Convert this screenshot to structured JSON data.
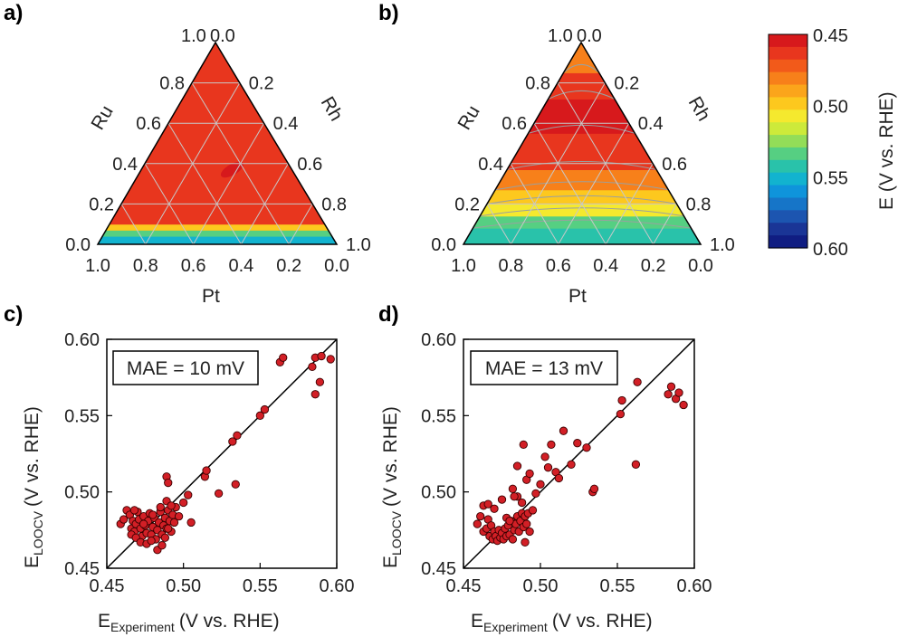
{
  "panels": {
    "a": "a)",
    "b": "b)",
    "c": "c)",
    "d": "d)"
  },
  "colorbar": {
    "label": "E (V vs. RHE)",
    "ticks": [
      "0.45",
      "0.50",
      "0.55",
      "0.60"
    ],
    "tick_values": [
      0.45,
      0.5,
      0.55,
      0.6
    ],
    "colors": [
      "#d7191c",
      "#e8361e",
      "#f25a1a",
      "#f7801a",
      "#fba51b",
      "#fdc81e",
      "#f5e92e",
      "#cdea3a",
      "#93dd58",
      "#56cf82",
      "#29c2aa",
      "#12b3cf",
      "#0f94db",
      "#1675c8",
      "#1c55b0",
      "#1a3596",
      "#101d82"
    ]
  },
  "ternary": {
    "axes": {
      "bottom": "Pt",
      "left": "Ru",
      "right": "Rh"
    },
    "tick_labels": [
      "0.0",
      "0.2",
      "0.4",
      "0.6",
      "0.8",
      "1.0"
    ],
    "tick_values": [
      0,
      0.2,
      0.4,
      0.6,
      0.8,
      1
    ],
    "top_label": "1.0",
    "top_label_right": "0.0"
  },
  "chart_data": [
    {
      "type": "heatmap",
      "panel": "a",
      "title": "",
      "components": [
        "Pt",
        "Ru",
        "Rh"
      ],
      "value_unit": "E (V vs. RHE)",
      "regions_by_ru_fraction": [
        {
          "ru_range": [
            0.0,
            0.04
          ],
          "E": 0.55
        },
        {
          "ru_range": [
            0.04,
            0.07
          ],
          "E": 0.535
        },
        {
          "ru_range": [
            0.07,
            0.1
          ],
          "E": 0.5
        },
        {
          "ru_range": [
            0.1,
            1.0
          ],
          "E": 0.465
        }
      ],
      "minimum_near": {
        "Pt": 0.25,
        "Ru": 0.37,
        "Rh": 0.38,
        "E": 0.455
      }
    },
    {
      "type": "heatmap",
      "panel": "b",
      "title": "",
      "components": [
        "Pt",
        "Ru",
        "Rh"
      ],
      "value_unit": "E (V vs. RHE)",
      "regions_by_ru_fraction": [
        {
          "ru_range": [
            0.0,
            0.08
          ],
          "E": 0.545
        },
        {
          "ru_range": [
            0.08,
            0.14
          ],
          "E": 0.53
        },
        {
          "ru_range": [
            0.14,
            0.2
          ],
          "E": 0.51
        },
        {
          "ru_range": [
            0.2,
            0.27
          ],
          "E": 0.495
        },
        {
          "ru_range": [
            0.27,
            0.37
          ],
          "E": 0.48
        },
        {
          "ru_range": [
            0.37,
            0.55
          ],
          "E": 0.465
        },
        {
          "ru_range": [
            0.55,
            0.72
          ],
          "E": 0.455
        },
        {
          "ru_range": [
            0.72,
            0.85
          ],
          "E": 0.465
        },
        {
          "ru_range": [
            0.85,
            1.0
          ],
          "E": 0.485
        }
      ]
    },
    {
      "type": "scatter",
      "panel": "c",
      "annotation": "MAE = 10 mV",
      "xlabel": "E",
      "xlabel_sub": "Experiment",
      "xlabel_unit": "(V vs. RHE)",
      "ylabel": "E",
      "ylabel_sub": "LOOCV",
      "ylabel_unit": "(V vs. RHE)",
      "xlim": [
        0.45,
        0.6
      ],
      "ylim": [
        0.45,
        0.6
      ],
      "xticks": [
        "0.45",
        "0.50",
        "0.55",
        "0.60"
      ],
      "yticks": [
        "0.45",
        "0.50",
        "0.55",
        "0.60"
      ],
      "reference_line": "y = x",
      "x": [
        0.459,
        0.461,
        0.463,
        0.465,
        0.466,
        0.467,
        0.468,
        0.469,
        0.47,
        0.471,
        0.472,
        0.473,
        0.474,
        0.475,
        0.476,
        0.477,
        0.478,
        0.479,
        0.48,
        0.481,
        0.482,
        0.483,
        0.484,
        0.485,
        0.486,
        0.487,
        0.488,
        0.489,
        0.49,
        0.491,
        0.492,
        0.493,
        0.494,
        0.495,
        0.466,
        0.469,
        0.472,
        0.476,
        0.479,
        0.483,
        0.486,
        0.488,
        0.49,
        0.468,
        0.474,
        0.48,
        0.485,
        0.489,
        0.492,
        0.497,
        0.5,
        0.503,
        0.505,
        0.514,
        0.515,
        0.523,
        0.532,
        0.535,
        0.534,
        0.55,
        0.553,
        0.563,
        0.565,
        0.584,
        0.586,
        0.59,
        0.596,
        0.586,
        0.589,
        0.489,
        0.49
      ],
      "y": [
        0.479,
        0.482,
        0.488,
        0.485,
        0.476,
        0.481,
        0.474,
        0.479,
        0.487,
        0.482,
        0.476,
        0.471,
        0.484,
        0.478,
        0.473,
        0.481,
        0.486,
        0.472,
        0.477,
        0.483,
        0.469,
        0.475,
        0.48,
        0.487,
        0.472,
        0.478,
        0.483,
        0.476,
        0.488,
        0.481,
        0.474,
        0.485,
        0.48,
        0.49,
        0.472,
        0.47,
        0.467,
        0.466,
        0.468,
        0.462,
        0.465,
        0.47,
        0.476,
        0.488,
        0.479,
        0.485,
        0.49,
        0.494,
        0.491,
        0.484,
        0.493,
        0.498,
        0.48,
        0.51,
        0.514,
        0.499,
        0.533,
        0.537,
        0.505,
        0.55,
        0.554,
        0.585,
        0.588,
        0.582,
        0.588,
        0.589,
        0.587,
        0.564,
        0.572,
        0.51,
        0.506
      ]
    },
    {
      "type": "scatter",
      "panel": "d",
      "annotation": "MAE = 13 mV",
      "xlabel": "E",
      "xlabel_sub": "Experiment",
      "xlabel_unit": "(V vs. RHE)",
      "ylabel": "E",
      "ylabel_sub": "LOOCV",
      "ylabel_unit": "(V vs. RHE)",
      "xlim": [
        0.45,
        0.6
      ],
      "ylim": [
        0.45,
        0.6
      ],
      "xticks": [
        "0.45",
        "0.50",
        "0.55",
        "0.60"
      ],
      "yticks": [
        "0.45",
        "0.50",
        "0.55",
        "0.60"
      ],
      "reference_line": "y = x",
      "x": [
        0.459,
        0.461,
        0.463,
        0.465,
        0.466,
        0.467,
        0.468,
        0.469,
        0.47,
        0.471,
        0.472,
        0.473,
        0.474,
        0.475,
        0.476,
        0.477,
        0.478,
        0.479,
        0.48,
        0.481,
        0.482,
        0.483,
        0.484,
        0.485,
        0.486,
        0.487,
        0.488,
        0.489,
        0.49,
        0.491,
        0.492,
        0.463,
        0.466,
        0.47,
        0.475,
        0.478,
        0.482,
        0.485,
        0.489,
        0.491,
        0.493,
        0.495,
        0.497,
        0.5,
        0.503,
        0.505,
        0.507,
        0.51,
        0.512,
        0.515,
        0.52,
        0.524,
        0.53,
        0.534,
        0.535,
        0.552,
        0.553,
        0.562,
        0.563,
        0.583,
        0.585,
        0.588,
        0.59,
        0.593,
        0.483,
        0.488,
        0.49,
        0.493,
        0.485,
        0.48
      ],
      "y": [
        0.479,
        0.484,
        0.474,
        0.476,
        0.482,
        0.471,
        0.478,
        0.469,
        0.474,
        0.471,
        0.468,
        0.475,
        0.47,
        0.473,
        0.469,
        0.476,
        0.471,
        0.478,
        0.472,
        0.481,
        0.469,
        0.475,
        0.479,
        0.484,
        0.474,
        0.481,
        0.486,
        0.477,
        0.484,
        0.479,
        0.486,
        0.491,
        0.492,
        0.489,
        0.495,
        0.483,
        0.502,
        0.497,
        0.531,
        0.508,
        0.512,
        0.488,
        0.499,
        0.505,
        0.523,
        0.516,
        0.531,
        0.513,
        0.509,
        0.54,
        0.518,
        0.532,
        0.529,
        0.5,
        0.502,
        0.551,
        0.56,
        0.518,
        0.572,
        0.564,
        0.569,
        0.561,
        0.565,
        0.557,
        0.497,
        0.493,
        0.467,
        0.474,
        0.517,
        0.481
      ]
    }
  ]
}
